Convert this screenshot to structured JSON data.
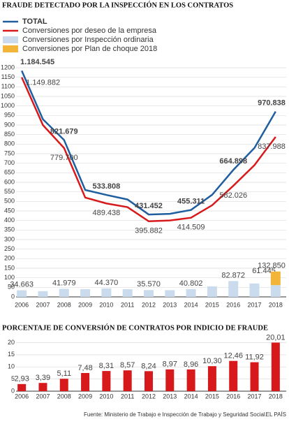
{
  "chart_data": [
    {
      "type": "line",
      "title": "FRAUDE DETECTADO POR LA INSPECCIÓN EN LOS CONTRATOS",
      "categories": [
        "2006",
        "2007",
        "2008",
        "2009",
        "2010",
        "2011",
        "2012",
        "2013",
        "2014",
        "2015",
        "2016",
        "2017",
        "2018"
      ],
      "series": [
        {
          "name": "TOTAL",
          "color": "#1f5f9f",
          "kind": "line",
          "values": [
            1184.545,
            930,
            821.679,
            560,
            533.808,
            510,
            431.452,
            435,
            455.311,
            535,
            664.898,
            780,
            970.838
          ],
          "value_labels": [
            "1.184.545",
            null,
            "821.679",
            null,
            "533.808",
            null,
            "431.452",
            null,
            "455.311",
            null,
            "664.898",
            null,
            "970.838"
          ]
        },
        {
          "name": "Conversiones por deseo de la empresa",
          "color": "#d7191c",
          "kind": "line",
          "values": [
            1149.882,
            900,
            779.7,
            520,
            489.438,
            470,
            395.882,
            400,
            414.509,
            480,
            582.026,
            690,
            837.988
          ],
          "value_labels": [
            "1.149.882",
            null,
            "779.700",
            null,
            "489.438",
            null,
            "395.882",
            null,
            "414.509",
            null,
            "582.026",
            null,
            "837.988"
          ]
        },
        {
          "name": "Conversiones por Inspección ordinaria",
          "color": "#c9dbec",
          "kind": "bar",
          "values": [
            34.663,
            30,
            41.979,
            40,
            44.37,
            40,
            35.57,
            35,
            40.802,
            55,
            82.872,
            70,
            61.445
          ],
          "value_labels": [
            "34.663",
            null,
            "41.979",
            null,
            "44.370",
            null,
            "35.570",
            null,
            "40.802",
            null,
            "82.872",
            null,
            "61.445"
          ]
        },
        {
          "name": "Conversiones por Plan de choque 2018",
          "color": "#f2b53a",
          "kind": "bar",
          "values": [
            null,
            null,
            null,
            null,
            null,
            null,
            null,
            null,
            null,
            null,
            null,
            null,
            71.405
          ]
        }
      ],
      "annotations": [
        {
          "text": "132.850",
          "value": 132.85
        }
      ],
      "ylim": [
        0,
        1200
      ],
      "yticks": [
        0,
        50,
        100,
        150,
        200,
        250,
        300,
        350,
        400,
        450,
        500,
        550,
        600,
        650,
        700,
        750,
        800,
        850,
        900,
        950,
        1000,
        1050,
        1100,
        1150,
        1200
      ],
      "grid": true
    },
    {
      "type": "bar",
      "title": "PORCENTAJE DE CONVERSIÓN DE CONTRATOS POR INDICIO DE FRAUDE",
      "categories": [
        "2006",
        "2007",
        "2008",
        "2009",
        "2010",
        "2011",
        "2012",
        "2013",
        "2014",
        "2015",
        "2016",
        "2017",
        "2018"
      ],
      "values": [
        2.93,
        3.39,
        5.11,
        7.48,
        8.31,
        8.57,
        8.24,
        8.97,
        8.96,
        10.3,
        12.46,
        11.92,
        20.01
      ],
      "value_labels": [
        "2,93",
        "3,39",
        "5,11",
        "7,48",
        "8,31",
        "8,57",
        "8,24",
        "8,97",
        "8,96",
        "10,30",
        "12,46",
        "11,92",
        "20,01"
      ],
      "color": "#d7191c",
      "ylim": [
        0,
        21
      ],
      "yticks": [
        0,
        5,
        10,
        15,
        20
      ],
      "grid": true
    }
  ],
  "footer": {
    "source": "Fuente: Ministerio de Trabajo e Inspección de Trabajo y Seguridad Social.",
    "brand": "EL PAÍS"
  }
}
